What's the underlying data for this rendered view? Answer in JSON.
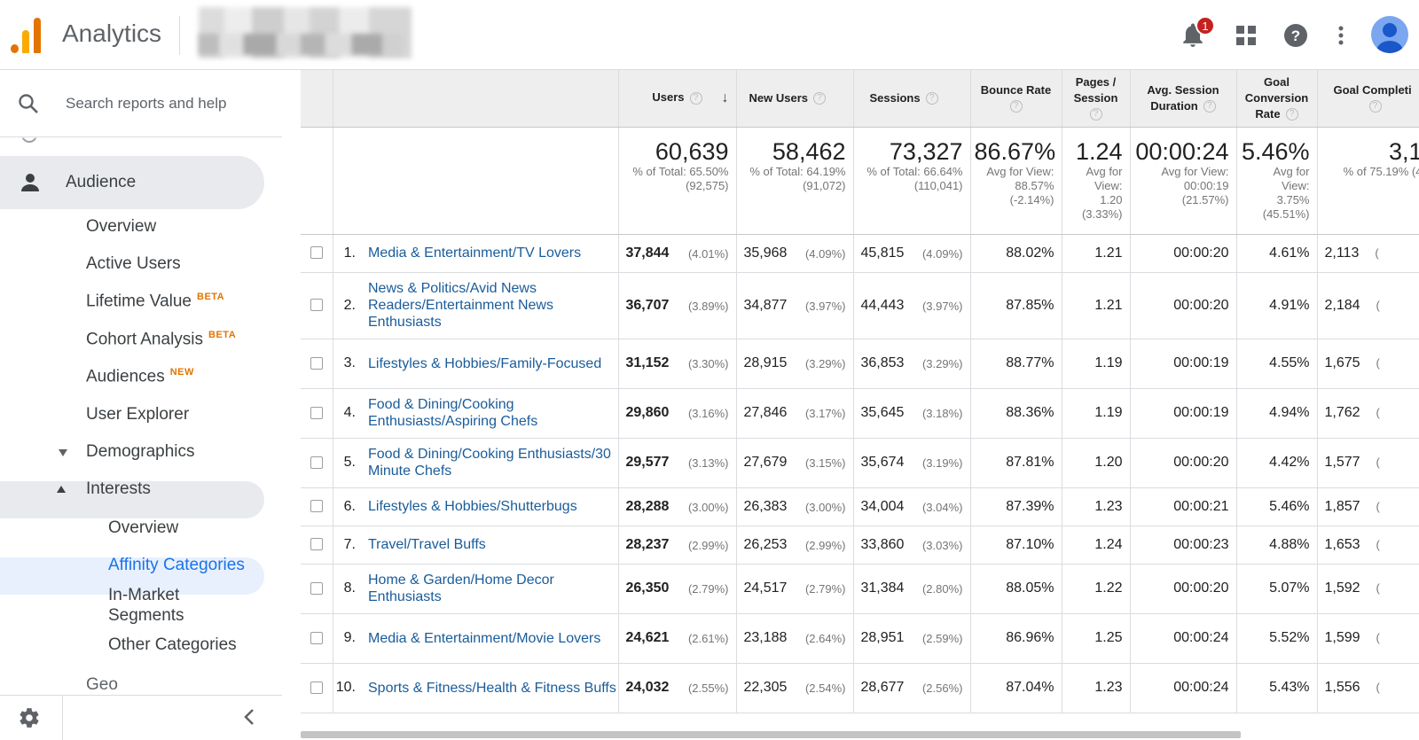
{
  "app": {
    "title": "Analytics",
    "notification_count": "1"
  },
  "search": {
    "placeholder": "Search reports and help"
  },
  "sidebar": {
    "audience": "Audience",
    "items": [
      {
        "label": "Overview"
      },
      {
        "label": "Active Users"
      },
      {
        "label": "Lifetime Value",
        "tag": "BETA"
      },
      {
        "label": "Cohort Analysis",
        "tag": "BETA"
      },
      {
        "label": "Audiences",
        "tag": "NEW"
      },
      {
        "label": "User Explorer"
      },
      {
        "label": "Demographics"
      },
      {
        "label": "Interests"
      }
    ],
    "sub_items": [
      {
        "label": "Overview"
      },
      {
        "label": "Affinity Categories"
      },
      {
        "label": "In-Market Segments"
      },
      {
        "label": "Other Categories"
      }
    ],
    "partial_item": "Geo"
  },
  "table": {
    "headers": {
      "users": "Users",
      "new_users": "New Users",
      "sessions": "Sessions",
      "bounce_rate": "Bounce Rate",
      "pages_session": "Pages / Session",
      "avg_session_duration": "Avg. Session Duration",
      "goal_conversion_rate": "Goal Conversion Rate",
      "goal_completions": "Goal Completi",
      "help_mark": "?",
      "sort_arrow": "↓"
    },
    "totals": {
      "users": {
        "value": "60,639",
        "sub": "% of Total: 65.50% (92,575)"
      },
      "new_users": {
        "value": "58,462",
        "sub": "% of Total: 64.19% (91,072)"
      },
      "sessions": {
        "value": "73,327",
        "sub": "% of Total: 66.64% (110,041)"
      },
      "bounce_rate": {
        "value": "86.67%",
        "sub": "Avg for View: 88.57% (-2.14%)"
      },
      "pages_session": {
        "value": "1.24",
        "sub": "Avg for View: 1.20 (3.33%)"
      },
      "avg_session_duration": {
        "value": "00:00:24",
        "sub": "Avg for View: 00:00:19 (21.57%)"
      },
      "goal_conversion_rate": {
        "value": "5.46%",
        "sub": "Avg for View: 3.75% (45.51%)"
      },
      "goal_completions": {
        "value": "3,1",
        "sub": "% of 75.19% (4"
      }
    },
    "rows": [
      {
        "idx": "1.",
        "category": "Media & Entertainment/TV Lovers",
        "users": "37,844",
        "users_pct": "(4.01%)",
        "new_users": "35,968",
        "new_users_pct": "(4.09%)",
        "sessions": "45,815",
        "sessions_pct": "(4.09%)",
        "bounce": "88.02%",
        "pages": "1.21",
        "duration": "00:00:20",
        "conv": "4.61%",
        "goals": "2,113",
        "goals_pct": "("
      },
      {
        "idx": "2.",
        "category": "News & Politics/Avid News Readers/Entertainment News Enthusiasts",
        "users": "36,707",
        "users_pct": "(3.89%)",
        "new_users": "34,877",
        "new_users_pct": "(3.97%)",
        "sessions": "44,443",
        "sessions_pct": "(3.97%)",
        "bounce": "87.85%",
        "pages": "1.21",
        "duration": "00:00:20",
        "conv": "4.91%",
        "goals": "2,184",
        "goals_pct": "("
      },
      {
        "idx": "3.",
        "category": "Lifestyles & Hobbies/Family-Focused",
        "users": "31,152",
        "users_pct": "(3.30%)",
        "new_users": "28,915",
        "new_users_pct": "(3.29%)",
        "sessions": "36,853",
        "sessions_pct": "(3.29%)",
        "bounce": "88.77%",
        "pages": "1.19",
        "duration": "00:00:19",
        "conv": "4.55%",
        "goals": "1,675",
        "goals_pct": "("
      },
      {
        "idx": "4.",
        "category": "Food & Dining/Cooking Enthusiasts/Aspiring Chefs",
        "users": "29,860",
        "users_pct": "(3.16%)",
        "new_users": "27,846",
        "new_users_pct": "(3.17%)",
        "sessions": "35,645",
        "sessions_pct": "(3.18%)",
        "bounce": "88.36%",
        "pages": "1.19",
        "duration": "00:00:19",
        "conv": "4.94%",
        "goals": "1,762",
        "goals_pct": "("
      },
      {
        "idx": "5.",
        "category": "Food & Dining/Cooking Enthusiasts/30 Minute Chefs",
        "users": "29,577",
        "users_pct": "(3.13%)",
        "new_users": "27,679",
        "new_users_pct": "(3.15%)",
        "sessions": "35,674",
        "sessions_pct": "(3.19%)",
        "bounce": "87.81%",
        "pages": "1.20",
        "duration": "00:00:20",
        "conv": "4.42%",
        "goals": "1,577",
        "goals_pct": "("
      },
      {
        "idx": "6.",
        "category": "Lifestyles & Hobbies/Shutterbugs",
        "users": "28,288",
        "users_pct": "(3.00%)",
        "new_users": "26,383",
        "new_users_pct": "(3.00%)",
        "sessions": "34,004",
        "sessions_pct": "(3.04%)",
        "bounce": "87.39%",
        "pages": "1.23",
        "duration": "00:00:21",
        "conv": "5.46%",
        "goals": "1,857",
        "goals_pct": "("
      },
      {
        "idx": "7.",
        "category": "Travel/Travel Buffs",
        "users": "28,237",
        "users_pct": "(2.99%)",
        "new_users": "26,253",
        "new_users_pct": "(2.99%)",
        "sessions": "33,860",
        "sessions_pct": "(3.03%)",
        "bounce": "87.10%",
        "pages": "1.24",
        "duration": "00:00:23",
        "conv": "4.88%",
        "goals": "1,653",
        "goals_pct": "("
      },
      {
        "idx": "8.",
        "category": "Home & Garden/Home Decor Enthusiasts",
        "users": "26,350",
        "users_pct": "(2.79%)",
        "new_users": "24,517",
        "new_users_pct": "(2.79%)",
        "sessions": "31,384",
        "sessions_pct": "(2.80%)",
        "bounce": "88.05%",
        "pages": "1.22",
        "duration": "00:00:20",
        "conv": "5.07%",
        "goals": "1,592",
        "goals_pct": "("
      },
      {
        "idx": "9.",
        "category": "Media & Entertainment/Movie Lovers",
        "users": "24,621",
        "users_pct": "(2.61%)",
        "new_users": "23,188",
        "new_users_pct": "(2.64%)",
        "sessions": "28,951",
        "sessions_pct": "(2.59%)",
        "bounce": "86.96%",
        "pages": "1.25",
        "duration": "00:00:24",
        "conv": "5.52%",
        "goals": "1,599",
        "goals_pct": "("
      },
      {
        "idx": "10.",
        "category": "Sports & Fitness/Health & Fitness Buffs",
        "users": "24,032",
        "users_pct": "(2.55%)",
        "new_users": "22,305",
        "new_users_pct": "(2.54%)",
        "sessions": "28,677",
        "sessions_pct": "(2.56%)",
        "bounce": "87.04%",
        "pages": "1.23",
        "duration": "00:00:24",
        "conv": "5.43%",
        "goals": "1,556",
        "goals_pct": "("
      }
    ]
  },
  "colors": {
    "accent": "#e37400",
    "link": "#1a5c9a",
    "badge": "#c5221f",
    "selected_bg": "#e8f0fe"
  }
}
